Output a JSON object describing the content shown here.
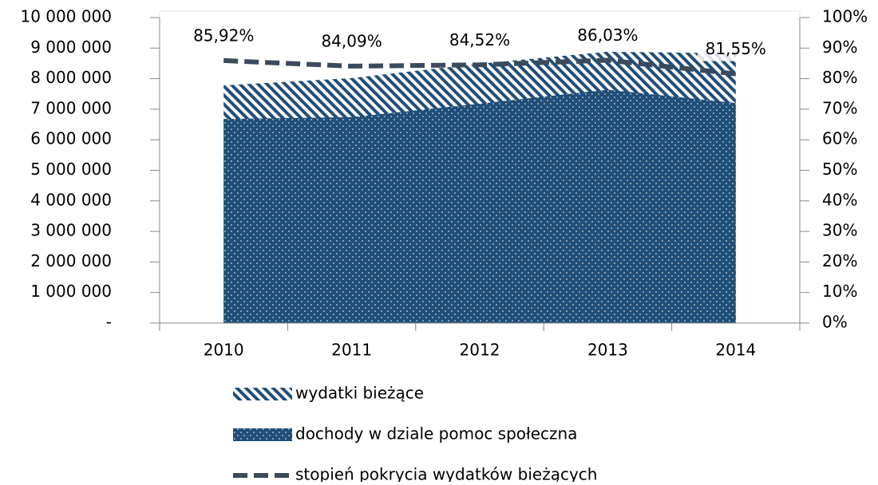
{
  "chart_data": {
    "type": "area",
    "categories": [
      "2010",
      "2011",
      "2012",
      "2013",
      "2014"
    ],
    "series": [
      {
        "name": "wydatki bieżące",
        "color": "#1f4e79",
        "pattern": "hatch",
        "values": [
          7780000,
          8020000,
          8490000,
          8880000,
          8830000
        ]
      },
      {
        "name": "dochody w dziale pomoc społeczna",
        "color": "#1f4e79",
        "pattern": "dots",
        "values": [
          6680000,
          6740000,
          7180000,
          7640000,
          7200000
        ]
      },
      {
        "name": "stopień pokrycia wydatków bieżących",
        "type": "line",
        "color": "#3b4a5c",
        "dash": true,
        "axis": "y2",
        "values": [
          85.92,
          84.09,
          84.52,
          86.03,
          81.55
        ],
        "value_labels": [
          "85,92%",
          "84,09%",
          "84,52%",
          "86,03%",
          "81,55%"
        ]
      }
    ],
    "ylim": [
      0,
      10000000
    ],
    "yticks": [
      {
        "value": 0,
        "label": "-"
      },
      {
        "value": 1000000,
        "label": "1 000 000"
      },
      {
        "value": 2000000,
        "label": "2 000 000"
      },
      {
        "value": 3000000,
        "label": "3 000 000"
      },
      {
        "value": 4000000,
        "label": "4 000 000"
      },
      {
        "value": 5000000,
        "label": "5 000 000"
      },
      {
        "value": 6000000,
        "label": "6 000 000"
      },
      {
        "value": 7000000,
        "label": "7 000 000"
      },
      {
        "value": 8000000,
        "label": "8 000 000"
      },
      {
        "value": 9000000,
        "label": "9 000 000"
      },
      {
        "value": 10000000,
        "label": "10 000 000"
      }
    ],
    "y2lim": [
      0,
      100
    ],
    "y2ticks": [
      {
        "value": 0,
        "label": "0%"
      },
      {
        "value": 10,
        "label": "10%"
      },
      {
        "value": 20,
        "label": "20%"
      },
      {
        "value": 30,
        "label": "30%"
      },
      {
        "value": 40,
        "label": "40%"
      },
      {
        "value": 50,
        "label": "50%"
      },
      {
        "value": 60,
        "label": "60%"
      },
      {
        "value": 70,
        "label": "70%"
      },
      {
        "value": 80,
        "label": "80%"
      },
      {
        "value": 90,
        "label": "90%"
      },
      {
        "value": 100,
        "label": "100%"
      }
    ],
    "legend": "bottom"
  }
}
